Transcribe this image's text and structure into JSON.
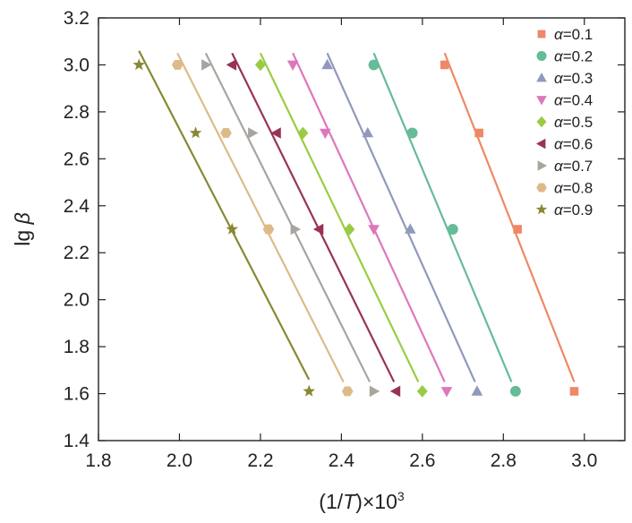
{
  "chart_data": {
    "type": "scatter",
    "title": "",
    "xlabel": {
      "prefix": "(1/",
      "var": "T",
      "suffix": ")×10",
      "exp": "3"
    },
    "ylabel": {
      "prefix": "lg ",
      "var": "β"
    },
    "xlim": [
      1.8,
      3.1
    ],
    "ylim": [
      1.4,
      3.2
    ],
    "xticks": [
      1.8,
      2.0,
      2.2,
      2.4,
      2.6,
      2.8,
      3.0
    ],
    "xtick_labels": [
      "1.8",
      "2.0",
      "2.2",
      "2.4",
      "2.6",
      "2.8",
      "3.0"
    ],
    "yticks": [
      1.4,
      1.6,
      1.8,
      2.0,
      2.2,
      2.4,
      2.6,
      2.8,
      3.0,
      3.2
    ],
    "ytick_labels": [
      "1.4",
      "1.6",
      "1.8",
      "2.0",
      "2.2",
      "2.4",
      "2.6",
      "2.8",
      "3.0",
      "3.2"
    ],
    "grid": false,
    "legend_position": "top-right",
    "series": [
      {
        "name": "α=0.1",
        "var": "α",
        "val": "=0.1",
        "color": "#ee8866",
        "marker": "square",
        "x": [
          2.655,
          2.74,
          2.835,
          2.975
        ],
        "y": [
          3.0,
          2.71,
          2.3,
          1.61
        ],
        "fit": [
          [
            2.655,
            3.05
          ],
          [
            2.975,
            1.65
          ]
        ]
      },
      {
        "name": "α=0.2",
        "var": "α",
        "val": "=0.2",
        "color": "#66bb99",
        "marker": "circle",
        "x": [
          2.48,
          2.575,
          2.675,
          2.83
        ],
        "y": [
          3.0,
          2.71,
          2.3,
          1.61
        ],
        "fit": [
          [
            2.48,
            3.05
          ],
          [
            2.82,
            1.65
          ]
        ]
      },
      {
        "name": "α=0.3",
        "var": "α",
        "val": "=0.3",
        "color": "#9099bb",
        "marker": "triangle-up",
        "x": [
          2.365,
          2.465,
          2.57,
          2.735
        ],
        "y": [
          3.0,
          2.71,
          2.3,
          1.61
        ],
        "fit": [
          [
            2.365,
            3.05
          ],
          [
            2.73,
            1.65
          ]
        ]
      },
      {
        "name": "α=0.4",
        "var": "α",
        "val": "=0.4",
        "color": "#dd77bb",
        "marker": "triangle-down",
        "x": [
          2.28,
          2.36,
          2.48,
          2.66
        ],
        "y": [
          3.0,
          2.71,
          2.3,
          1.61
        ],
        "fit": [
          [
            2.28,
            3.05
          ],
          [
            2.655,
            1.65
          ]
        ]
      },
      {
        "name": "α=0.5",
        "var": "α",
        "val": "=0.5",
        "color": "#99cc44",
        "marker": "diamond",
        "x": [
          2.2,
          2.305,
          2.42,
          2.6
        ],
        "y": [
          3.0,
          2.71,
          2.3,
          1.61
        ],
        "fit": [
          [
            2.2,
            3.05
          ],
          [
            2.59,
            1.65
          ]
        ]
      },
      {
        "name": "α=0.6",
        "var": "α",
        "val": "=0.6",
        "color": "#993355",
        "marker": "triangle-left",
        "x": [
          2.13,
          2.24,
          2.345,
          2.535
        ],
        "y": [
          3.0,
          2.71,
          2.3,
          1.61
        ],
        "fit": [
          [
            2.13,
            3.05
          ],
          [
            2.53,
            1.65
          ]
        ]
      },
      {
        "name": "α=0.7",
        "var": "α",
        "val": "=0.7",
        "color": "#aaa49e",
        "marker": "triangle-right",
        "x": [
          2.065,
          2.18,
          2.285,
          2.48
        ],
        "y": [
          3.0,
          2.71,
          2.3,
          1.61
        ],
        "fit": [
          [
            2.065,
            3.05
          ],
          [
            2.47,
            1.65
          ]
        ]
      },
      {
        "name": "α=0.8",
        "var": "α",
        "val": "=0.8",
        "color": "#ddbb88",
        "marker": "hexagon",
        "x": [
          1.995,
          2.115,
          2.22,
          2.415
        ],
        "y": [
          3.0,
          2.71,
          2.3,
          1.61
        ],
        "fit": [
          [
            1.995,
            3.05
          ],
          [
            2.405,
            1.65
          ]
        ]
      },
      {
        "name": "α=0.9",
        "var": "α",
        "val": "=0.9",
        "color": "#888833",
        "marker": "star",
        "x": [
          1.9,
          2.04,
          2.13,
          2.32
        ],
        "y": [
          3.0,
          2.71,
          2.3,
          1.61
        ],
        "fit": [
          [
            1.9,
            3.06
          ],
          [
            2.32,
            1.66
          ]
        ]
      }
    ]
  }
}
